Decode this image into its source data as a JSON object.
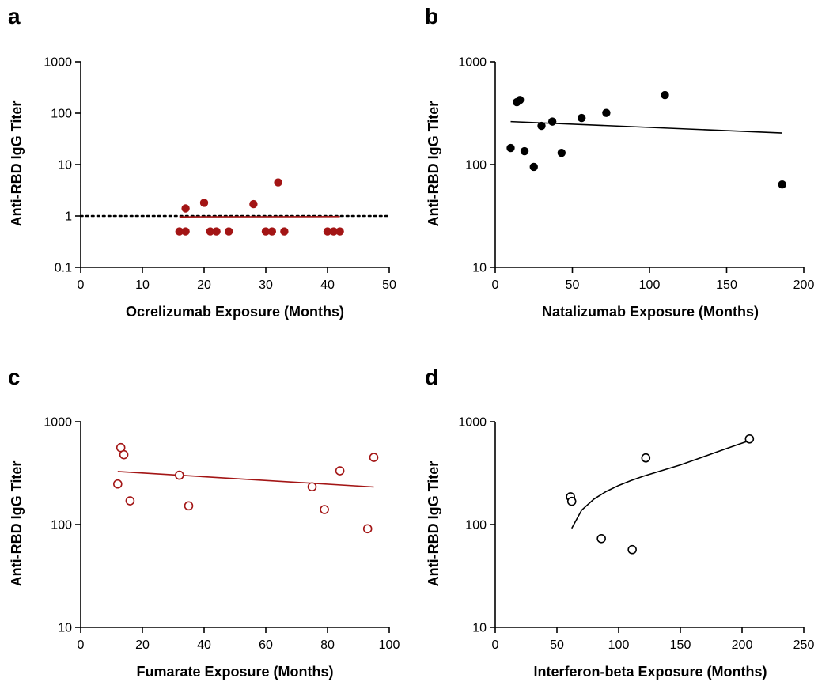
{
  "chart_data": [
    {
      "panel": "a",
      "type": "scatter",
      "xlabel": "Ocrelizumab Exposure (Months)",
      "ylabel": "Anti-RBD IgG Titer",
      "xlim": [
        0,
        50
      ],
      "ylim": [
        0.1,
        1000
      ],
      "yscale": "log",
      "xticks": [
        0,
        10,
        20,
        30,
        40,
        50
      ],
      "yticks": [
        0.1,
        1,
        10,
        100,
        1000
      ],
      "color": "#a31515",
      "marker": "filled",
      "points": [
        {
          "x": 16,
          "y": 0.5
        },
        {
          "x": 17,
          "y": 0.5
        },
        {
          "x": 17,
          "y": 1.4
        },
        {
          "x": 20,
          "y": 1.8
        },
        {
          "x": 21,
          "y": 0.5
        },
        {
          "x": 22,
          "y": 0.5
        },
        {
          "x": 24,
          "y": 0.5
        },
        {
          "x": 28,
          "y": 1.7
        },
        {
          "x": 30,
          "y": 0.5
        },
        {
          "x": 31,
          "y": 0.5
        },
        {
          "x": 32,
          "y": 4.5
        },
        {
          "x": 33,
          "y": 0.5
        },
        {
          "x": 40,
          "y": 0.5
        },
        {
          "x": 41,
          "y": 0.5
        },
        {
          "x": 42,
          "y": 0.5
        }
      ],
      "fit": {
        "x": [
          16,
          42
        ],
        "y": [
          0.96,
          0.97
        ],
        "color": "#a31515"
      },
      "reference_line": {
        "y": 1,
        "x": [
          0,
          50
        ],
        "style": "dotted",
        "color": "#000000"
      }
    },
    {
      "panel": "b",
      "type": "scatter",
      "xlabel": "Natalizumab Exposure (Months)",
      "ylabel": "Anti-RBD IgG Titer",
      "xlim": [
        0,
        200
      ],
      "ylim": [
        10,
        1000
      ],
      "yscale": "log",
      "xticks": [
        0,
        50,
        100,
        150,
        200
      ],
      "yticks": [
        10,
        100,
        1000
      ],
      "color": "#000000",
      "marker": "filled",
      "points": [
        {
          "x": 10,
          "y": 145
        },
        {
          "x": 14,
          "y": 405
        },
        {
          "x": 16,
          "y": 425
        },
        {
          "x": 19,
          "y": 135
        },
        {
          "x": 25,
          "y": 95
        },
        {
          "x": 30,
          "y": 238
        },
        {
          "x": 37,
          "y": 262
        },
        {
          "x": 43,
          "y": 130
        },
        {
          "x": 56,
          "y": 284
        },
        {
          "x": 72,
          "y": 318
        },
        {
          "x": 110,
          "y": 475
        },
        {
          "x": 186,
          "y": 64
        }
      ],
      "fit": {
        "x": [
          10,
          186
        ],
        "y": [
          262,
          203
        ],
        "color": "#000000"
      }
    },
    {
      "panel": "c",
      "type": "scatter",
      "xlabel": "Fumarate Exposure (Months)",
      "ylabel": "Anti-RBD IgG Titer",
      "xlim": [
        0,
        100
      ],
      "ylim": [
        10,
        1000
      ],
      "yscale": "log",
      "xticks": [
        0,
        20,
        40,
        60,
        80,
        100
      ],
      "yticks": [
        10,
        100,
        1000
      ],
      "color": "#a31515",
      "marker": "open",
      "points": [
        {
          "x": 12,
          "y": 248
        },
        {
          "x": 13,
          "y": 560
        },
        {
          "x": 14,
          "y": 478
        },
        {
          "x": 16,
          "y": 170
        },
        {
          "x": 32,
          "y": 302
        },
        {
          "x": 35,
          "y": 152
        },
        {
          "x": 75,
          "y": 233
        },
        {
          "x": 79,
          "y": 140
        },
        {
          "x": 84,
          "y": 333
        },
        {
          "x": 93,
          "y": 91
        },
        {
          "x": 95,
          "y": 450
        }
      ],
      "fit": {
        "x": [
          12,
          95
        ],
        "y": [
          328,
          232
        ],
        "color": "#a31515"
      }
    },
    {
      "panel": "d",
      "type": "scatter",
      "xlabel": "Interferon-beta Exposure (Months)",
      "ylabel": "Anti-RBD IgG Titer",
      "xlim": [
        0,
        250
      ],
      "ylim": [
        10,
        1000
      ],
      "yscale": "log",
      "xticks": [
        0,
        50,
        100,
        150,
        200,
        250
      ],
      "yticks": [
        10,
        100,
        1000
      ],
      "color": "#000000",
      "marker": "open",
      "points": [
        {
          "x": 61,
          "y": 186
        },
        {
          "x": 62,
          "y": 168
        },
        {
          "x": 86,
          "y": 73
        },
        {
          "x": 111,
          "y": 57
        },
        {
          "x": 122,
          "y": 445
        },
        {
          "x": 206,
          "y": 680
        }
      ],
      "fit": {
        "x": [
          62,
          70,
          80,
          90,
          100,
          110,
          120,
          135,
          150,
          165,
          180,
          195,
          206
        ],
        "y": [
          92,
          138,
          177,
          210,
          240,
          268,
          295,
          335,
          380,
          440,
          510,
          590,
          655
        ],
        "color": "#000000"
      }
    }
  ]
}
